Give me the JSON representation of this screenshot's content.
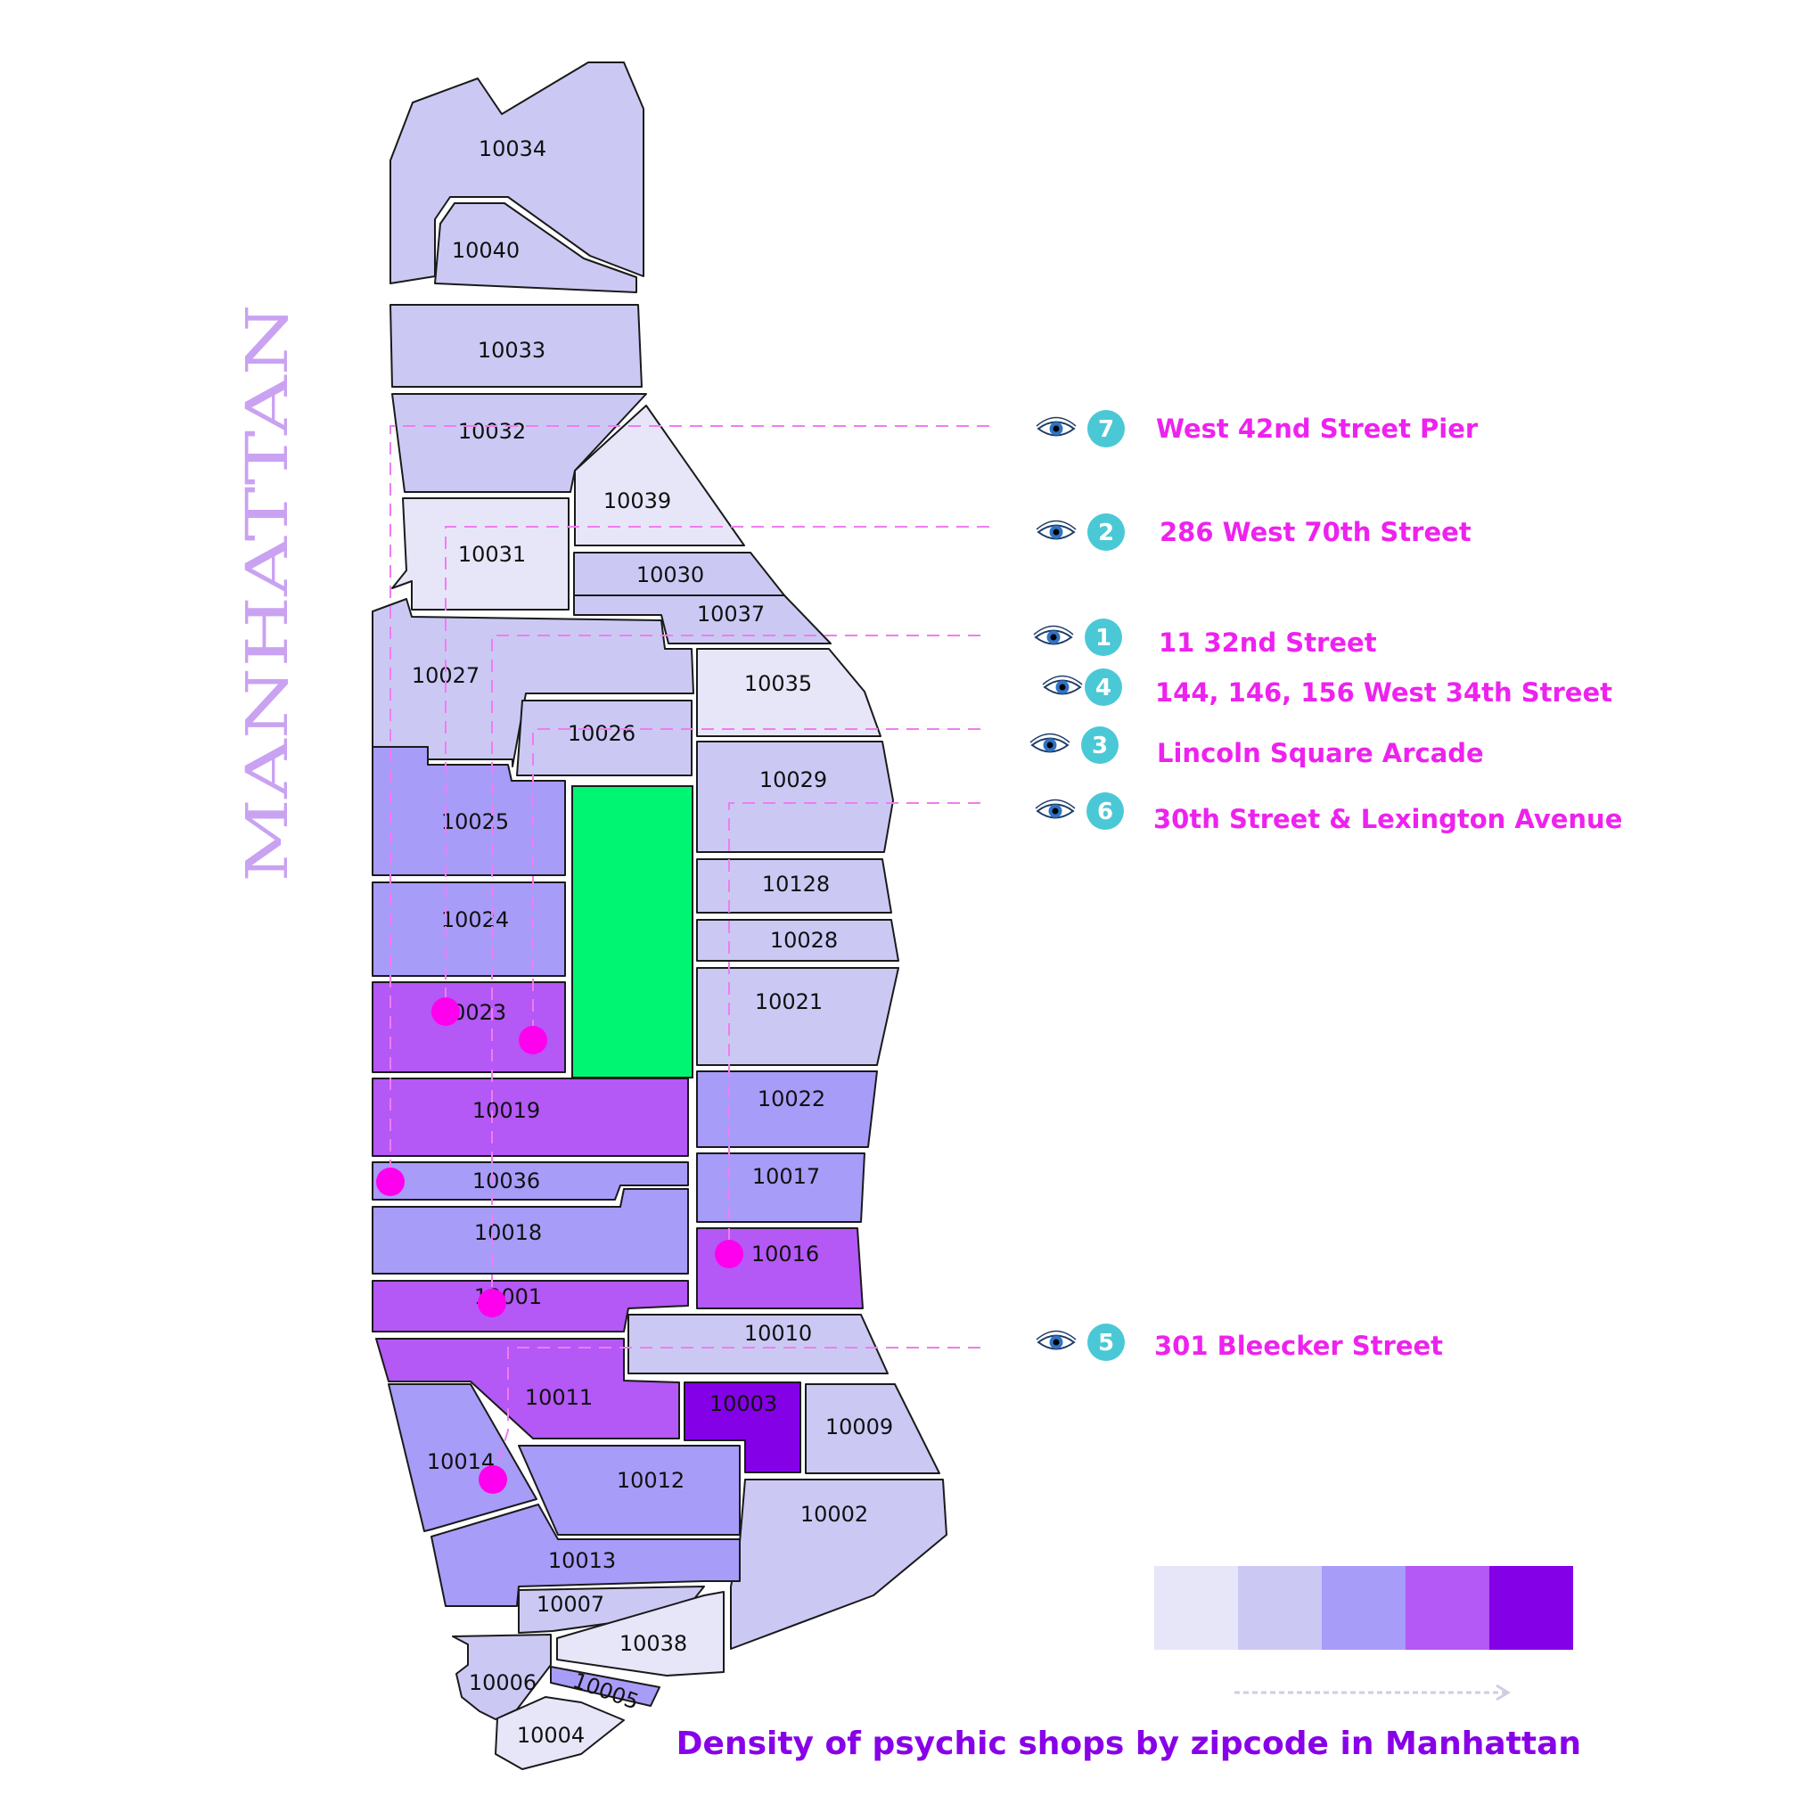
{
  "borough_title": "MANHATTAN",
  "map_title": "Density of psychic shops by zipcode in Manhattan",
  "colors": {
    "level_1": "#e7e6f9",
    "level_2": "#cbc9f4",
    "level_3": "#a89cf9",
    "level_4": "#b458f6",
    "level_5": "#8400e6",
    "park": "#00f572",
    "marker": "#ff00ee",
    "badge": "#4bc8d6",
    "location_text": "#ee22ee",
    "title": "#8800e8"
  },
  "legend": {
    "levels": [
      1,
      2,
      3,
      4,
      5
    ]
  },
  "zipcodes": [
    {
      "zip": "10034",
      "level": 2
    },
    {
      "zip": "10040",
      "level": 2
    },
    {
      "zip": "10033",
      "level": 2
    },
    {
      "zip": "10032",
      "level": 2
    },
    {
      "zip": "10039",
      "level": 1
    },
    {
      "zip": "10031",
      "level": 1
    },
    {
      "zip": "10030",
      "level": 2
    },
    {
      "zip": "10037",
      "level": 2
    },
    {
      "zip": "10027",
      "level": 2
    },
    {
      "zip": "10035",
      "level": 1
    },
    {
      "zip": "10026",
      "level": 2
    },
    {
      "zip": "10029",
      "level": 2
    },
    {
      "zip": "10025",
      "level": 3
    },
    {
      "zip": "10128",
      "level": 2
    },
    {
      "zip": "10024",
      "level": 3
    },
    {
      "zip": "10028",
      "level": 2
    },
    {
      "zip": "10021",
      "level": 2
    },
    {
      "zip": "10023",
      "level": 4
    },
    {
      "zip": "10022",
      "level": 3
    },
    {
      "zip": "10019",
      "level": 4
    },
    {
      "zip": "10017",
      "level": 3
    },
    {
      "zip": "10036",
      "level": 3
    },
    {
      "zip": "10018",
      "level": 3
    },
    {
      "zip": "10016",
      "level": 4
    },
    {
      "zip": "10001",
      "level": 4
    },
    {
      "zip": "10010",
      "level": 2
    },
    {
      "zip": "10011",
      "level": 4
    },
    {
      "zip": "10003",
      "level": 5
    },
    {
      "zip": "10009",
      "level": 2
    },
    {
      "zip": "10014",
      "level": 3
    },
    {
      "zip": "10012",
      "level": 3
    },
    {
      "zip": "10002",
      "level": 2
    },
    {
      "zip": "10013",
      "level": 3
    },
    {
      "zip": "10007",
      "level": 2
    },
    {
      "zip": "10038",
      "level": 1
    },
    {
      "zip": "10006",
      "level": 2
    },
    {
      "zip": "10005",
      "level": 3
    },
    {
      "zip": "10004",
      "level": 1
    }
  ],
  "locations": [
    {
      "number": "7",
      "label": "West 42nd Street Pier",
      "icon": "eye-icon"
    },
    {
      "number": "2",
      "label": "286 West 70th Street",
      "icon": "eye-icon"
    },
    {
      "number": "1",
      "label": "11 32nd Street",
      "icon": "eye-icon"
    },
    {
      "number": "4",
      "label": "144, 146, 156 West 34th Street",
      "icon": "eye-icon"
    },
    {
      "number": "3",
      "label": "Lincoln Square Arcade",
      "icon": "eye-icon"
    },
    {
      "number": "6",
      "label": "30th Street & Lexington Avenue",
      "icon": "eye-icon"
    },
    {
      "number": "5",
      "label": "301 Bleecker Street",
      "icon": "eye-icon"
    }
  ]
}
